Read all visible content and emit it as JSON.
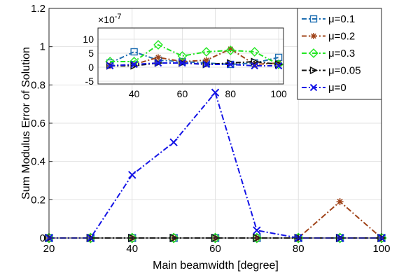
{
  "colors": {
    "mu_0_1": "#1f6fb2",
    "mu_0_2": "#a0441a",
    "mu_0_3": "#22e622",
    "mu_0_05": "#111111",
    "mu_0": "#1414e6"
  },
  "chart_data": {
    "type": "line",
    "xlabel": "Main beamwidth  [degree]",
    "ylabel": "Sum Modulus Error of Solution",
    "xlim": [
      20,
      100
    ],
    "ylim": [
      0,
      1.2
    ],
    "xticks": [
      "20",
      "40",
      "60",
      "80",
      "100"
    ],
    "yticks": [
      "0",
      "0.2",
      "0.4",
      "0.6",
      "0.8",
      "1",
      "1.2"
    ],
    "grid": true,
    "legend_position": "top-right",
    "x": [
      20,
      30,
      40,
      50,
      60,
      70,
      80,
      90,
      100
    ],
    "series": [
      {
        "name": "μ=0.1",
        "values": [
          0,
          0,
          0,
          0,
          0,
          0,
          0,
          0,
          0
        ]
      },
      {
        "name": "μ=0.2",
        "values": [
          0,
          0,
          0,
          0,
          0,
          0,
          0,
          0.19,
          0
        ]
      },
      {
        "name": "μ=0.3",
        "values": [
          0,
          0,
          0,
          0,
          0,
          0,
          0,
          0,
          0
        ]
      },
      {
        "name": "μ=0.05",
        "values": [
          0,
          0,
          0,
          0,
          0,
          0,
          0,
          0,
          0
        ]
      },
      {
        "name": "μ=0",
        "values": [
          0,
          0,
          0.33,
          0.5,
          0.76,
          0.04,
          0,
          0,
          0
        ]
      }
    ],
    "inset": {
      "scale_label": "×10",
      "scale_exponent": "-7",
      "xlim": [
        25,
        102
      ],
      "ylim": [
        -6,
        14
      ],
      "xticks": [
        "40",
        "60",
        "80",
        "100"
      ],
      "yticks": [
        "-5",
        "0",
        "5",
        "10"
      ],
      "x": [
        30,
        40,
        50,
        60,
        70,
        80,
        90,
        100
      ],
      "series": [
        {
          "name": "μ=0.1",
          "values": [
            1.5,
            5.5,
            2.5,
            2.0,
            1.5,
            1.0,
            1.5,
            3.5
          ]
        },
        {
          "name": "μ=0.2",
          "values": [
            0.5,
            1.0,
            3.5,
            2.0,
            2.5,
            6.5,
            1.0,
            1.5
          ]
        },
        {
          "name": "μ=0.3",
          "values": [
            2.0,
            2.0,
            8.0,
            4.0,
            5.5,
            6.0,
            5.5,
            1.0
          ]
        },
        {
          "name": "μ=0.05",
          "values": [
            0.5,
            0.5,
            1.5,
            1.5,
            1.0,
            1.5,
            2.0,
            1.0
          ]
        },
        {
          "name": "μ=0",
          "values": [
            0.5,
            1.0,
            1.5,
            1.5,
            1.0,
            1.0,
            0.5,
            0.5
          ]
        }
      ]
    }
  }
}
